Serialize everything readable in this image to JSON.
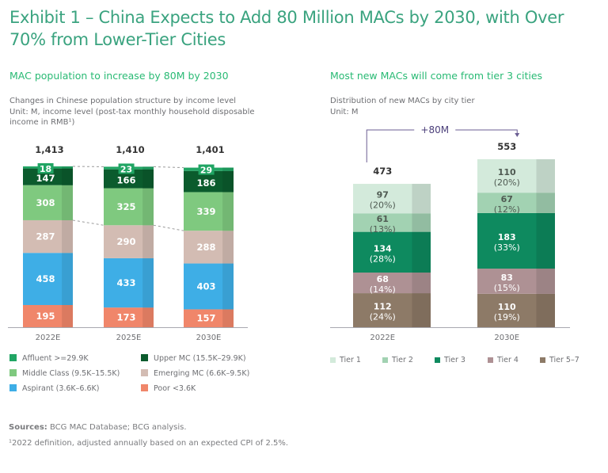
{
  "title": "Exhibit 1 – China Expects to Add 80 Million MACs by 2030, with Over 70% from Lower-Tier Cities",
  "left_panel": {
    "subtitle": "MAC population to increase by 80M by 2030",
    "desc_line1": "Changes in Chinese population structure by income level",
    "desc_line2": "Unit: M, income level (post-tax monthly household disposable",
    "desc_line3": "income in RMB¹)"
  },
  "right_panel": {
    "subtitle": "Most new MACs will come from tier 3 cities",
    "desc_line1": "Distribution of new MACs by city tier",
    "desc_line2": "Unit: M"
  },
  "footer": {
    "sources_label": "Sources:",
    "sources_text": " BCG MAC Database; BCG analysis.",
    "note": "¹2022 definition, adjusted annually based on an expected CPI of 2.5%."
  },
  "chart_data": [
    {
      "type": "bar",
      "stacked": true,
      "title": "MAC population to increase by 80M by 2030",
      "categories": [
        "2022E",
        "2025E",
        "2030E"
      ],
      "totals": [
        "1,413",
        "1,410",
        "1,401"
      ],
      "series": [
        {
          "name": "Poor <3.6K",
          "color": "#f0866a",
          "values": [
            195,
            173,
            157
          ]
        },
        {
          "name": "Aspirant (3.6K–6.6K)",
          "color": "#3eaee6",
          "values": [
            458,
            433,
            403
          ]
        },
        {
          "name": "Emerging MC (6.6K–9.5K)",
          "color": "#d3bcb3",
          "values": [
            287,
            290,
            288
          ]
        },
        {
          "name": "Middle Class (9.5K–15.5K)",
          "color": "#7fc97f",
          "values": [
            308,
            325,
            339
          ]
        },
        {
          "name": "Upper MC (15.5K–29.9K)",
          "color": "#0b5b2d",
          "values": [
            147,
            166,
            186
          ]
        },
        {
          "name": "Affluent >=29.9K",
          "color": "#21a564",
          "values": [
            18,
            23,
            29
          ]
        }
      ],
      "legend": [
        "Affluent >=29.9K",
        "Upper MC (15.5K–29.9K)",
        "Middle Class (9.5K–15.5K)",
        "Emerging MC (6.6K–9.5K)",
        "Aspirant (3.6K–6.6K)",
        "Poor <3.6K"
      ],
      "legend_position": "bottom",
      "grid": false,
      "ylim": [
        0,
        1413
      ]
    },
    {
      "type": "bar",
      "stacked": true,
      "title": "Most new MACs will come from tier 3 cities",
      "categories": [
        "2022E",
        "2030E"
      ],
      "totals": [
        "473",
        "553"
      ],
      "annotation": "+80M",
      "series": [
        {
          "name": "Tier 5–7",
          "color": "#8d7a67",
          "text_color": "#ffffff",
          "values": [
            112,
            110
          ],
          "labels": [
            "(24%)",
            "(19%)"
          ]
        },
        {
          "name": "Tier 4",
          "color": "#ae9194",
          "text_color": "#ffffff",
          "values": [
            68,
            83
          ],
          "labels": [
            "(14%)",
            "(15%)"
          ]
        },
        {
          "name": "Tier 3",
          "color": "#0e8a5f",
          "text_color": "#ffffff",
          "values": [
            134,
            183
          ],
          "labels": [
            "(28%)",
            "(33%)"
          ]
        },
        {
          "name": "Tier 2",
          "color": "#a2d2b2",
          "text_color": "#4f5a52",
          "values": [
            61,
            67
          ],
          "labels": [
            "(13%)",
            "(12%)"
          ]
        },
        {
          "name": "Tier 1",
          "color": "#d3eadb",
          "text_color": "#4f5a52",
          "values": [
            97,
            110
          ],
          "labels": [
            "(20%)",
            "(20%)"
          ]
        }
      ],
      "legend": [
        "Tier 1",
        "Tier 2",
        "Tier 3",
        "Tier 4",
        "Tier 5–7"
      ],
      "legend_position": "bottom",
      "grid": false,
      "ylim": [
        0,
        553
      ]
    }
  ]
}
